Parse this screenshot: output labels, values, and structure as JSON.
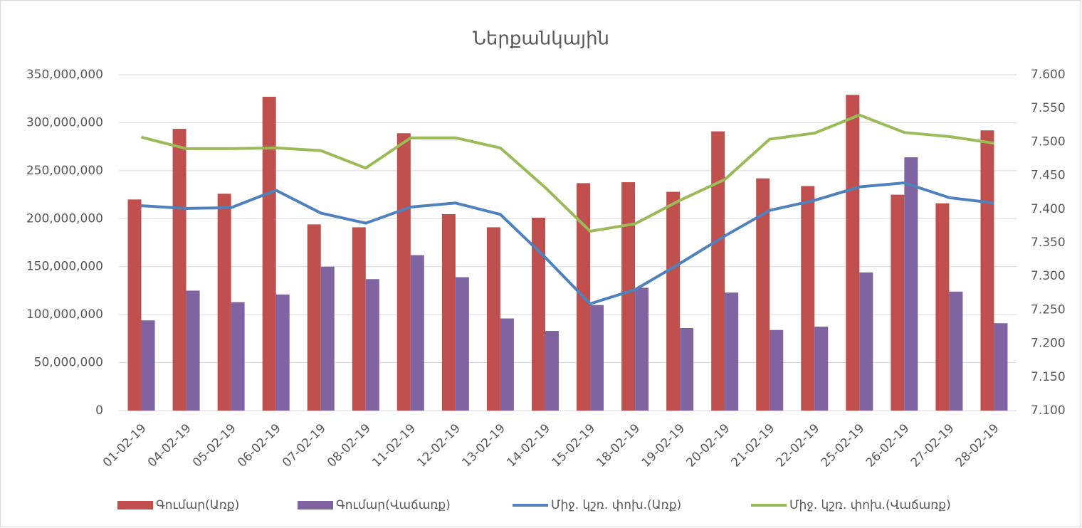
{
  "chart_data": {
    "type": "bar-line",
    "title": "Ներքանկային",
    "categories": [
      "01-02-19",
      "04-02-19",
      "05-02-19",
      "06-02-19",
      "07-02-19",
      "08-02-19",
      "11-02-19",
      "12-02-19",
      "13-02-19",
      "14-02-19",
      "15-02-19",
      "18-02-19",
      "19-02-19",
      "20-02-19",
      "21-02-19",
      "22-02-19",
      "25-02-19",
      "26-02-19",
      "27-02-19",
      "28-02-19"
    ],
    "series": [
      {
        "name": "Գումար(Առք)",
        "type": "bar",
        "color": "#c0504d",
        "values": [
          220000000,
          293600000,
          226000000,
          327000000,
          194000000,
          191000000,
          289000000,
          204700000,
          191000000,
          201000000,
          237000000,
          238000000,
          228000000,
          291000000,
          242000000,
          234000000,
          329000000,
          225000000,
          216000000,
          292000000
        ]
      },
      {
        "name": "Գումար(Վաճառք)",
        "type": "bar",
        "color": "#8064a2",
        "values": [
          94000000,
          125000000,
          113000000,
          121000000,
          150000000,
          137000000,
          162000000,
          139000000,
          96000000,
          83000000,
          110000000,
          128000000,
          86000000,
          123000000,
          84000000,
          87500000,
          144000000,
          264000000,
          124000000,
          91000000
        ]
      },
      {
        "name": "Միջ. կշռ. փոխ.(Առք)",
        "type": "line",
        "axis": "y2",
        "color": "#4f81bd",
        "values": [
          7.405,
          7.401,
          7.402,
          7.428,
          7.394,
          7.379,
          7.403,
          7.409,
          7.392,
          7.328,
          7.259,
          7.28,
          7.319,
          7.36,
          7.398,
          7.413,
          7.433,
          7.439,
          7.417,
          7.409
        ]
      },
      {
        "name": "Միջ. կշռ. փոխ.(Վաճառք)",
        "type": "line",
        "axis": "y2",
        "color": "#9bbb59",
        "values": [
          7.507,
          7.49,
          7.49,
          7.491,
          7.487,
          7.461,
          7.506,
          7.506,
          7.491,
          7.432,
          7.367,
          7.378,
          7.413,
          7.444,
          7.504,
          7.513,
          7.54,
          7.514,
          7.508,
          7.498
        ]
      }
    ],
    "ylim": [
      0,
      350000000
    ],
    "yticks": [
      0,
      {
        "value": 50000000,
        "label": "50,000,000"
      },
      {
        "value": 100000000,
        "label": "100,000,000"
      },
      {
        "value": 150000000,
        "label": "150,000,000"
      },
      {
        "value": 200000000,
        "label": "200,000,000"
      },
      {
        "value": 250000000,
        "label": "250,000,000"
      },
      {
        "value": 300000000,
        "label": "300,000,000"
      },
      {
        "value": 350000000,
        "label": "350,000,000"
      }
    ],
    "y2lim": [
      7.1,
      7.6
    ],
    "y2ticks": [
      {
        "value": 7.1,
        "label": "7.100"
      },
      {
        "value": 7.15,
        "label": "7.150"
      },
      {
        "value": 7.2,
        "label": "7.200"
      },
      {
        "value": 7.25,
        "label": "7.250"
      },
      {
        "value": 7.3,
        "label": "7.300"
      },
      {
        "value": 7.35,
        "label": "7.350"
      },
      {
        "value": 7.4,
        "label": "7.400"
      },
      {
        "value": 7.45,
        "label": "7.450"
      },
      {
        "value": 7.5,
        "label": "7.500"
      },
      {
        "value": 7.55,
        "label": "7.550"
      },
      {
        "value": 7.6,
        "label": "7.600"
      }
    ],
    "grid": true,
    "legend": "bottom"
  }
}
